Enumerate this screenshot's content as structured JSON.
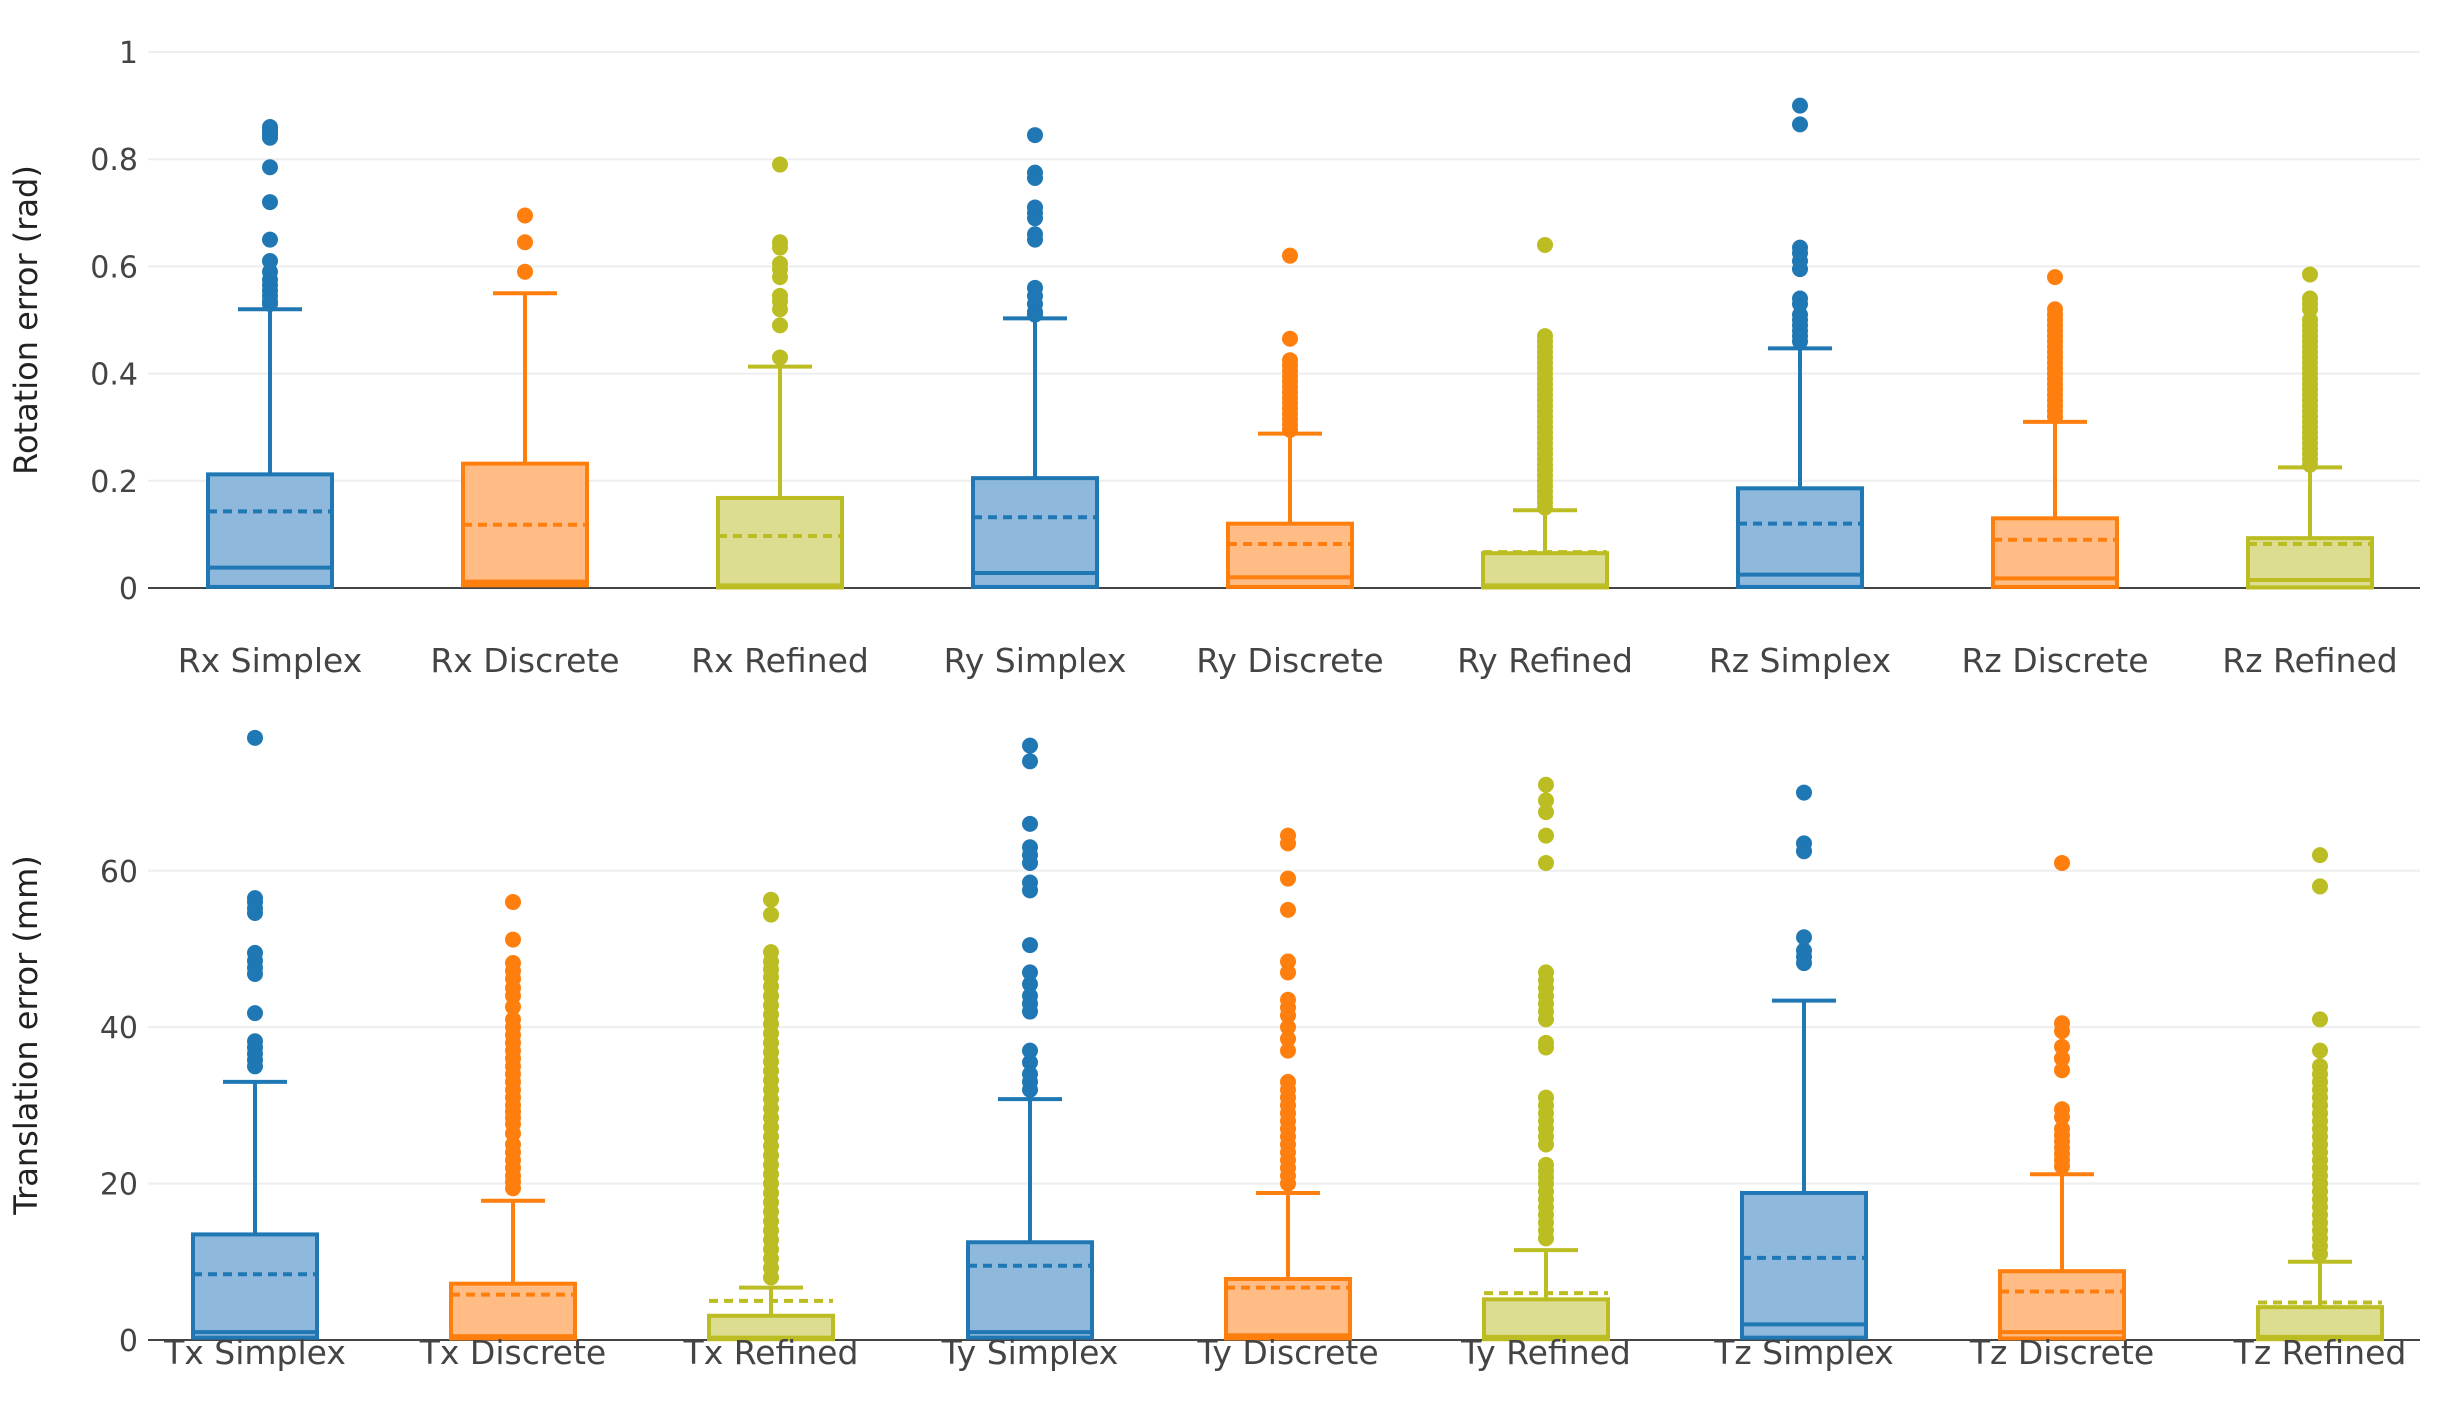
{
  "colors": {
    "Simplex": {
      "line": "#1f77b4",
      "fill": "#8fb9dc"
    },
    "Discrete": {
      "line": "#ff7f0e",
      "fill": "#ffbc85"
    },
    "Refined": {
      "line": "#bcbd22",
      "fill": "#dcdd90"
    },
    "grid": "#eeeeee",
    "axis": "#444444"
  },
  "chart_data": [
    {
      "type": "box",
      "ylabel": "Rotation error (rad)",
      "ylim": [
        0,
        1
      ],
      "yticks": [
        0,
        0.2,
        0.4,
        0.6,
        0.8,
        1
      ],
      "ytick_labels": [
        "0",
        "0.2",
        "0.4",
        "0.6",
        "0.8",
        "1"
      ],
      "grid": true,
      "categories": [
        "Rx Simplex",
        "Rx Discrete",
        "Rx Refined",
        "Ry Simplex",
        "Ry Discrete",
        "Ry Refined",
        "Rz Simplex",
        "Rz Discrete",
        "Rz Refined"
      ],
      "boxes": [
        {
          "name": "Rx Simplex",
          "method": "Simplex",
          "min": 0,
          "q1": 0.002,
          "median": 0.038,
          "q3": 0.212,
          "max": 0.52,
          "mean": 0.143,
          "outliers": [
            0.86,
            0.855,
            0.85,
            0.845,
            0.84,
            0.785,
            0.72,
            0.65,
            0.61,
            0.59,
            0.575,
            0.565,
            0.555,
            0.545,
            0.535,
            0.53
          ]
        },
        {
          "name": "Rx Discrete",
          "method": "Discrete",
          "min": 0,
          "q1": 0.005,
          "median": 0.012,
          "q3": 0.232,
          "max": 0.55,
          "mean": 0.118,
          "outliers": [
            0.695,
            0.645,
            0.59
          ]
        },
        {
          "name": "Rx Refined",
          "method": "Refined",
          "min": 0,
          "q1": 0.001,
          "median": 0.005,
          "q3": 0.168,
          "max": 0.413,
          "mean": 0.097,
          "outliers": [
            0.79,
            0.645,
            0.635,
            0.605,
            0.595,
            0.58,
            0.545,
            0.535,
            0.52,
            0.49,
            0.43
          ]
        },
        {
          "name": "Ry Simplex",
          "method": "Simplex",
          "min": 0,
          "q1": 0.002,
          "median": 0.028,
          "q3": 0.205,
          "max": 0.503,
          "mean": 0.132,
          "outliers": [
            0.845,
            0.775,
            0.765,
            0.71,
            0.7,
            0.69,
            0.66,
            0.65,
            0.56,
            0.545,
            0.53,
            0.515,
            0.51
          ]
        },
        {
          "name": "Ry Discrete",
          "method": "Discrete",
          "min": 0,
          "q1": 0.002,
          "median": 0.02,
          "q3": 0.12,
          "max": 0.288,
          "mean": 0.082,
          "outliers": [
            0.62,
            0.465,
            0.425,
            0.415,
            0.405,
            0.395,
            0.385,
            0.375,
            0.365,
            0.355,
            0.345,
            0.335,
            0.325,
            0.315,
            0.305,
            0.295
          ]
        },
        {
          "name": "Ry Refined",
          "method": "Refined",
          "min": 0,
          "q1": 0.001,
          "median": 0.005,
          "q3": 0.065,
          "max": 0.145,
          "mean": 0.067,
          "outliers": [
            0.64,
            0.47,
            0.46,
            0.45,
            0.44,
            0.43,
            0.42,
            0.41,
            0.4,
            0.39,
            0.38,
            0.37,
            0.36,
            0.35,
            0.34,
            0.33,
            0.32,
            0.31,
            0.3,
            0.29,
            0.28,
            0.27,
            0.26,
            0.25,
            0.24,
            0.23,
            0.22,
            0.21,
            0.2,
            0.19,
            0.18,
            0.17,
            0.16,
            0.15
          ]
        },
        {
          "name": "Rz Simplex",
          "method": "Simplex",
          "min": 0,
          "q1": 0.002,
          "median": 0.025,
          "q3": 0.186,
          "max": 0.447,
          "mean": 0.12,
          "outliers": [
            0.9,
            0.865,
            0.635,
            0.625,
            0.61,
            0.595,
            0.54,
            0.53,
            0.51,
            0.5,
            0.49,
            0.48,
            0.47,
            0.46
          ]
        },
        {
          "name": "Rz Discrete",
          "method": "Discrete",
          "min": 0,
          "q1": 0.002,
          "median": 0.018,
          "q3": 0.13,
          "max": 0.31,
          "mean": 0.09,
          "outliers": [
            0.58,
            0.52,
            0.51,
            0.5,
            0.49,
            0.48,
            0.47,
            0.46,
            0.45,
            0.44,
            0.43,
            0.42,
            0.41,
            0.4,
            0.39,
            0.38,
            0.37,
            0.36,
            0.35,
            0.34,
            0.33,
            0.32
          ]
        },
        {
          "name": "Rz Refined",
          "method": "Refined",
          "min": 0,
          "q1": 0.001,
          "median": 0.015,
          "q3": 0.093,
          "max": 0.225,
          "mean": 0.082,
          "outliers": [
            0.585,
            0.54,
            0.53,
            0.52,
            0.5,
            0.49,
            0.48,
            0.47,
            0.46,
            0.45,
            0.44,
            0.43,
            0.42,
            0.41,
            0.4,
            0.39,
            0.38,
            0.37,
            0.36,
            0.35,
            0.34,
            0.33,
            0.32,
            0.31,
            0.3,
            0.29,
            0.28,
            0.27,
            0.26,
            0.25,
            0.24,
            0.23
          ]
        }
      ]
    },
    {
      "type": "box",
      "ylabel": "Translation error (mm)",
      "ylim": [
        0,
        78
      ],
      "yticks": [
        0,
        20,
        40,
        60
      ],
      "ytick_labels": [
        "0",
        "20",
        "40",
        "60"
      ],
      "grid": true,
      "categories": [
        "Tx Simplex",
        "Tx Discrete",
        "Tx Refined",
        "Ty Simplex",
        "Ty Discrete",
        "Ty Refined",
        "Tz Simplex",
        "Tz Discrete",
        "Tz Refined"
      ],
      "boxes": [
        {
          "name": "Tx Simplex",
          "method": "Simplex",
          "min": 0,
          "q1": 0.3,
          "median": 1.0,
          "q3": 13.5,
          "max": 33.0,
          "mean": 8.4,
          "outliers": [
            77,
            56.5,
            56,
            55.2,
            54.6,
            49.5,
            48.5,
            47.6,
            46.8,
            41.8,
            38.2,
            37.4,
            36.6,
            35.8,
            35
          ]
        },
        {
          "name": "Tx Discrete",
          "method": "Discrete",
          "min": 0,
          "q1": 0.2,
          "median": 0.5,
          "q3": 7.2,
          "max": 17.8,
          "mean": 5.8,
          "outliers": [
            56,
            51.2,
            48.2,
            47.2,
            46.2,
            45,
            44,
            42.6,
            41,
            40,
            39,
            38,
            37,
            36,
            35,
            34,
            33,
            32,
            31,
            30,
            29.2,
            28.4,
            27.6,
            26.4,
            25,
            24,
            23,
            22,
            21,
            20.2,
            19.4
          ]
        },
        {
          "name": "Tx Refined",
          "method": "Refined",
          "min": 0,
          "q1": 0.1,
          "median": 0.3,
          "q3": 3.1,
          "max": 6.7,
          "mean": 5.0,
          "outliers": [
            56.3,
            54.4,
            49.6,
            48.4,
            47.4,
            46.4,
            45.2,
            44,
            42.8,
            41.6,
            40.4,
            39.2,
            38,
            36.8,
            35.6,
            34.4,
            33.2,
            32,
            30.8,
            29.6,
            28.4,
            27.2,
            26,
            24.8,
            23.6,
            22.4,
            21.2,
            20,
            18.8,
            17.6,
            16.4,
            15.2,
            14,
            12.8,
            11.6,
            10.4,
            9.2,
            8
          ]
        },
        {
          "name": "Ty Simplex",
          "method": "Simplex",
          "min": 0,
          "q1": 0.3,
          "median": 1.0,
          "q3": 12.5,
          "max": 30.8,
          "mean": 9.5,
          "outliers": [
            76,
            74,
            66,
            63,
            62,
            61,
            58.5,
            57.5,
            50.5,
            47,
            45.5,
            44,
            43,
            42,
            37,
            35.5,
            34,
            33,
            32
          ]
        },
        {
          "name": "Ty Discrete",
          "method": "Discrete",
          "min": 0,
          "q1": 0.2,
          "median": 0.6,
          "q3": 7.8,
          "max": 18.8,
          "mean": 6.7,
          "outliers": [
            64.5,
            63.5,
            59,
            55,
            48.4,
            47,
            43.5,
            42.5,
            41.5,
            40,
            38.5,
            37,
            33,
            32,
            31,
            30,
            29,
            28,
            27,
            26,
            25,
            24,
            23,
            22,
            21,
            20
          ]
        },
        {
          "name": "Ty Refined",
          "method": "Refined",
          "min": 0,
          "q1": 0.1,
          "median": 0.4,
          "q3": 5.2,
          "max": 11.5,
          "mean": 6.0,
          "outliers": [
            71,
            69,
            67.5,
            64.5,
            61,
            47,
            46,
            45,
            44,
            43,
            42,
            41,
            38,
            37.4,
            31,
            30,
            29,
            28,
            27,
            26,
            25,
            22.4,
            21.6,
            20.8,
            20,
            19,
            18,
            17,
            16,
            15,
            14,
            13
          ]
        },
        {
          "name": "Tz Simplex",
          "method": "Simplex",
          "min": 0,
          "q1": 0.3,
          "median": 2.0,
          "q3": 18.8,
          "max": 43.4,
          "mean": 10.5,
          "outliers": [
            70,
            63.5,
            62.5,
            51.5,
            49.8,
            49,
            48.2
          ]
        },
        {
          "name": "Tz Discrete",
          "method": "Discrete",
          "min": 0,
          "q1": 0.2,
          "median": 1.0,
          "q3": 8.8,
          "max": 21.2,
          "mean": 6.2,
          "outliers": [
            61,
            40.5,
            39.5,
            37.5,
            36,
            34.5,
            29.5,
            28.5,
            27,
            26.2,
            25.4,
            24.6,
            23.8,
            23,
            22.2
          ]
        },
        {
          "name": "Tz Refined",
          "method": "Refined",
          "min": 0,
          "q1": 0.1,
          "median": 0.4,
          "q3": 4.2,
          "max": 10.0,
          "mean": 4.8,
          "outliers": [
            62,
            58,
            41,
            37,
            35,
            34,
            33,
            32,
            31,
            30,
            29,
            28,
            27,
            26,
            25,
            24,
            23,
            22,
            21,
            20,
            19,
            18,
            17,
            16,
            15,
            14,
            13,
            12,
            11
          ]
        }
      ]
    }
  ]
}
